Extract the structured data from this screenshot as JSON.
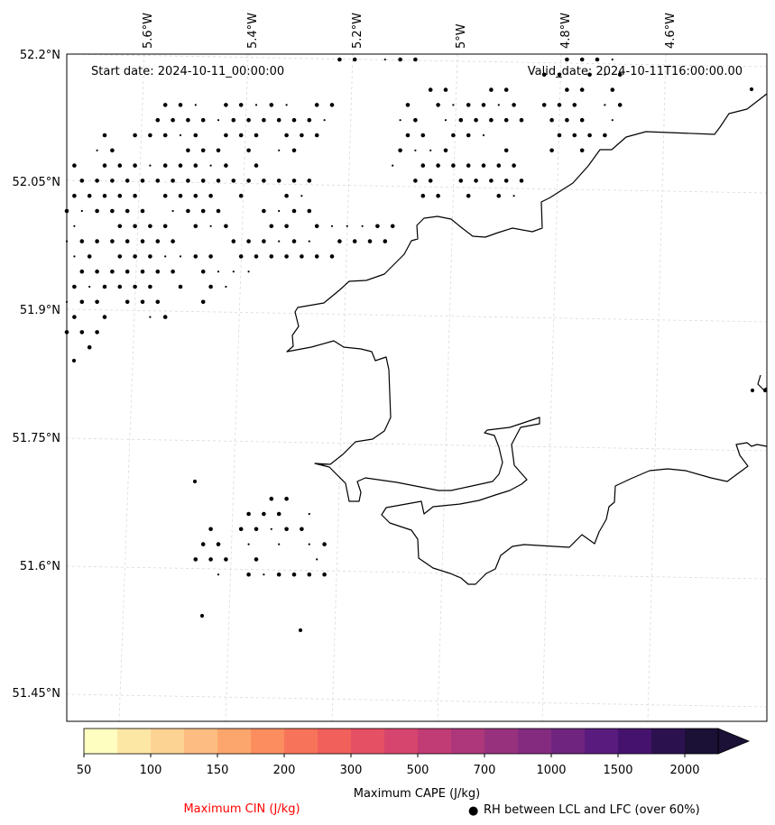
{
  "map": {
    "start_date": "Start date: 2024-10-11_00:00:00",
    "valid_date": "Valid_date: 2024-10-11T16:00:00.00",
    "lon_labels": [
      "5.6°W",
      "5.4°W",
      "5.2°W",
      "5°W",
      "4.8°W",
      "4.6°W"
    ],
    "lat_labels": [
      "52.2°N",
      "52.05°N",
      "51.9°N",
      "51.75°N",
      "51.6°N",
      "51.45°N"
    ]
  },
  "colorbar": {
    "title": "Maximum CAPE (J/kg)",
    "ticks": [
      "50",
      "100",
      "150",
      "200",
      "300",
      "500",
      "700",
      "1000",
      "1500",
      "2000"
    ],
    "colors": [
      "#fefec1",
      "#fde7a5",
      "#fdd394",
      "#fdbd81",
      "#fca66e",
      "#fb8d5f",
      "#f7745a",
      "#f1605b",
      "#e55064",
      "#d6456d",
      "#c13c75",
      "#ad377a",
      "#98317d",
      "#842b80",
      "#6f2480",
      "#5a1b7e",
      "#45136e",
      "#2c114f",
      "#1b1035"
    ]
  },
  "legend": {
    "cin_label": "Maximum CIN (J/kg)",
    "cin_color": "#ff0000",
    "rh_marker": "●",
    "rh_label": "RH between LCL and LFC (over 60%)"
  }
}
